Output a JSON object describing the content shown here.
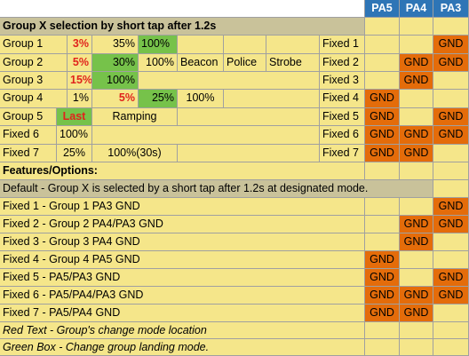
{
  "header": {
    "title": "Group X selection by short tap after 1.2s",
    "pa5": "PA5",
    "pa4": "PA4",
    "pa3": "PA3"
  },
  "groups": [
    {
      "name": "Group 1",
      "c1": "3%",
      "c2": "35%",
      "c3": "100%"
    },
    {
      "name": "Group 2",
      "c1": "5%",
      "c2": "30%",
      "c3": "100%",
      "c4": "Beacon",
      "c5": "Police",
      "c6": "Strobe"
    },
    {
      "name": "Group 3",
      "c1": "15%",
      "c2": "100%"
    },
    {
      "name": "Group 4",
      "c1": "1%",
      "c2": "5%",
      "c3": "25%",
      "c4": "100%"
    },
    {
      "name": "Group 5",
      "c1": "Last",
      "c2": "Ramping"
    },
    {
      "name": "Fixed 6",
      "c1": "100%"
    },
    {
      "name": "Fixed 7",
      "c1": "25%",
      "c2": "100%(30s)"
    }
  ],
  "fixed": [
    {
      "label": "Fixed 1",
      "pa5": "",
      "pa4": "",
      "pa3": "GND"
    },
    {
      "label": "Fixed 2",
      "pa5": "",
      "pa4": "GND",
      "pa3": "GND"
    },
    {
      "label": "Fixed 3",
      "pa5": "",
      "pa4": "GND",
      "pa3": ""
    },
    {
      "label": "Fixed 4",
      "pa5": "GND",
      "pa4": "",
      "pa3": ""
    },
    {
      "label": "Fixed 5",
      "pa5": "GND",
      "pa4": "",
      "pa3": "GND"
    },
    {
      "label": "Fixed 6",
      "pa5": "GND",
      "pa4": "GND",
      "pa3": "GND"
    },
    {
      "label": "Fixed 7",
      "pa5": "GND",
      "pa4": "GND",
      "pa3": ""
    }
  ],
  "features": {
    "title": "Features/Options:",
    "default": "Default - Group X is selected by a short tap after 1.2s at designated mode.",
    "rows": [
      {
        "text": "Fixed 1 - Group 1 PA3 GND",
        "pa5": "",
        "pa4": "",
        "pa3": "GND"
      },
      {
        "text": "Fixed 2 - Group 2  PA4/PA3 GND",
        "pa5": "",
        "pa4": "GND",
        "pa3": "GND"
      },
      {
        "text": "Fixed 3 - Group 3  PA4 GND",
        "pa5": "",
        "pa4": "GND",
        "pa3": ""
      },
      {
        "text": "Fixed 4 - Group 4 PA5 GND",
        "pa5": "GND",
        "pa4": "",
        "pa3": ""
      },
      {
        "text": "Fixed 5 - PA5/PA3 GND",
        "pa5": "GND",
        "pa4": "",
        "pa3": "GND"
      },
      {
        "text": "Fixed 6 - PA5/PA4/PA3 GND",
        "pa5": "GND",
        "pa4": "GND",
        "pa3": "GND"
      },
      {
        "text": "Fixed 7 - PA5/PA4 GND",
        "pa5": "GND",
        "pa4": "GND",
        "pa3": ""
      }
    ],
    "legend_red": "Red Text - Group's change mode location",
    "legend_green": "Green Box - Change group landing mode."
  },
  "colors": {
    "yellow": "#f5e68a",
    "header_gray": "#c9c29a",
    "blue": "#2e75b6",
    "orange": "#e46c0a",
    "green": "#76c24a",
    "red_text": "#e0231c"
  }
}
